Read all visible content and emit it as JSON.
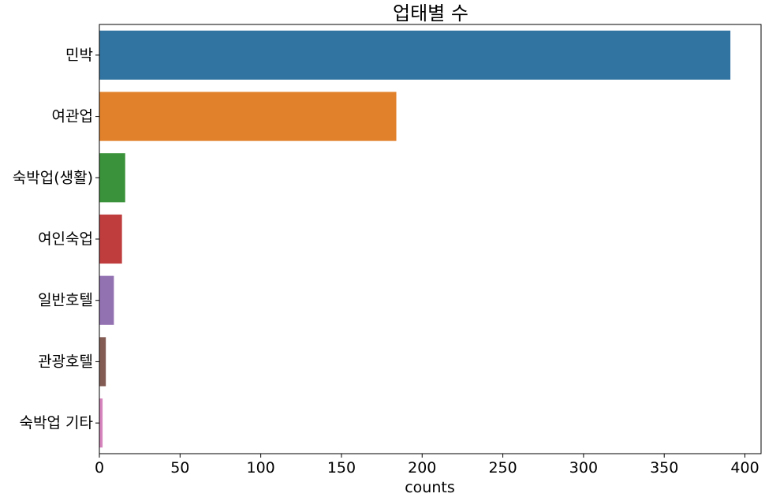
{
  "chart_data": {
    "type": "bar",
    "orientation": "horizontal",
    "title": "업태별 수",
    "xlabel": "counts",
    "ylabel": "",
    "categories": [
      "민박",
      "여관업",
      "숙박업(생활)",
      "여인숙업",
      "일반호텔",
      "관광호텔",
      "숙박업 기타"
    ],
    "values": [
      391,
      184,
      16,
      14,
      9,
      4,
      2
    ],
    "colors": [
      "#3274a1",
      "#e1812c",
      "#3a923a",
      "#c03d3e",
      "#9372b2",
      "#845b53",
      "#d684bd"
    ],
    "xlim": [
      0,
      410
    ],
    "xticks": [
      0,
      50,
      100,
      150,
      200,
      250,
      300,
      350,
      400
    ],
    "grid": false
  }
}
